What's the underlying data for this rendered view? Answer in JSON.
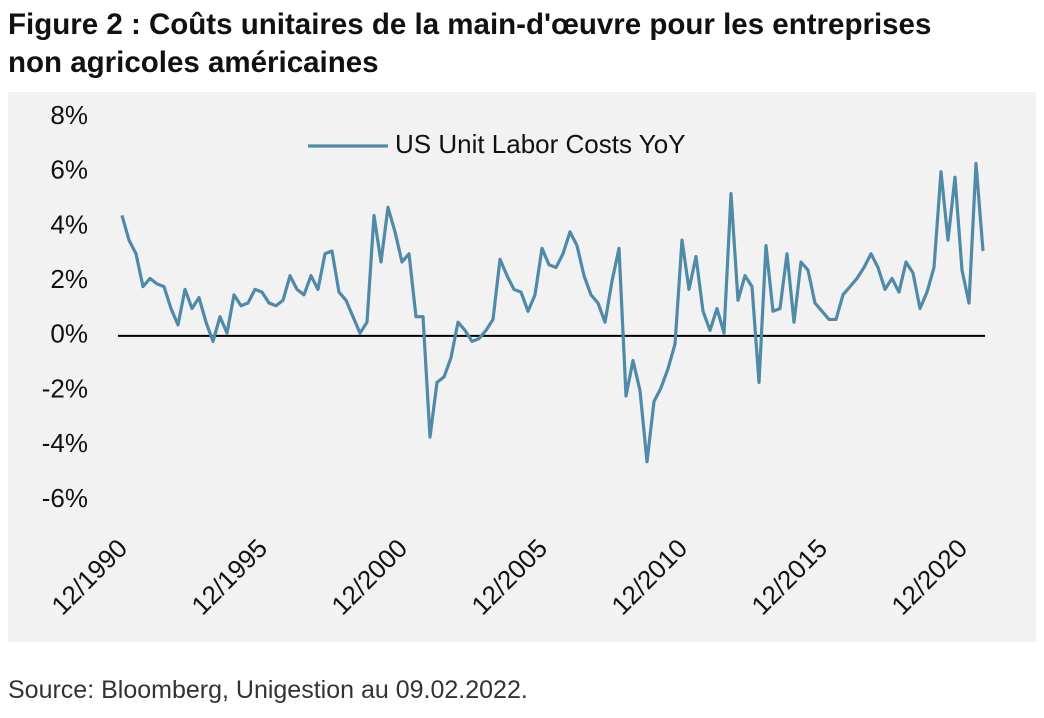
{
  "chart_data": {
    "type": "line",
    "title": "Figure 2 : Coûts unitaires de la main-d'œuvre pour les entreprises non agricoles américaines",
    "source": "Source: Bloomberg, Unigestion au 09.02.2022.",
    "categories": [
      "12/1990",
      null,
      null,
      null,
      null,
      null,
      null,
      null,
      null,
      null,
      null,
      null,
      null,
      null,
      null,
      null,
      null,
      null,
      null,
      null,
      "12/1995",
      null,
      null,
      null,
      null,
      null,
      null,
      null,
      null,
      null,
      null,
      null,
      null,
      null,
      null,
      null,
      null,
      null,
      null,
      null,
      "12/2000",
      null,
      null,
      null,
      null,
      null,
      null,
      null,
      null,
      null,
      null,
      null,
      null,
      null,
      null,
      null,
      null,
      null,
      null,
      null,
      "12/2005",
      null,
      null,
      null,
      null,
      null,
      null,
      null,
      null,
      null,
      null,
      null,
      null,
      null,
      null,
      null,
      null,
      null,
      null,
      null,
      "12/2010",
      null,
      null,
      null,
      null,
      null,
      null,
      null,
      null,
      null,
      null,
      null,
      null,
      null,
      null,
      null,
      null,
      null,
      null,
      null,
      "12/2015",
      null,
      null,
      null,
      null,
      null,
      null,
      null,
      null,
      null,
      null,
      null,
      null,
      null,
      null,
      null,
      null,
      null,
      null,
      null,
      "12/2020",
      null,
      null,
      null
    ],
    "series": [
      {
        "name": "US Unit Labor Costs YoY",
        "color": "#4f8aa8",
        "values": [
          4.4,
          3.5,
          3.0,
          1.8,
          2.1,
          1.9,
          1.8,
          1.0,
          0.4,
          1.7,
          1.0,
          1.4,
          0.5,
          -0.2,
          0.7,
          0.1,
          1.5,
          1.1,
          1.2,
          1.7,
          1.6,
          1.2,
          1.1,
          1.3,
          2.2,
          1.7,
          1.5,
          2.2,
          1.7,
          3.0,
          3.1,
          1.6,
          1.3,
          0.7,
          0.1,
          0.5,
          4.4,
          2.7,
          4.7,
          3.8,
          2.7,
          3.0,
          0.7,
          0.7,
          -3.7,
          -1.7,
          -1.5,
          -0.8,
          0.5,
          0.2,
          -0.2,
          -0.1,
          0.2,
          0.6,
          2.8,
          2.2,
          1.7,
          1.6,
          0.9,
          1.5,
          3.2,
          2.6,
          2.5,
          3.0,
          3.8,
          3.3,
          2.2,
          1.5,
          1.2,
          0.5,
          2.0,
          3.2,
          -2.2,
          -0.9,
          -2.0,
          -4.6,
          -2.4,
          -1.9,
          -1.2,
          -0.3,
          3.5,
          1.7,
          2.9,
          0.9,
          0.2,
          1.0,
          0.1,
          5.2,
          1.3,
          2.2,
          1.8,
          -1.7,
          3.3,
          0.9,
          1.0,
          3.0,
          0.5,
          2.7,
          2.4,
          1.2,
          0.9,
          0.6,
          0.6,
          1.5,
          1.8,
          2.1,
          2.5,
          3.0,
          2.5,
          1.7,
          2.1,
          1.6,
          2.7,
          2.3,
          1.0,
          1.6,
          2.5,
          6.0,
          3.5,
          5.8,
          2.4,
          1.2,
          6.3,
          3.1
        ]
      }
    ],
    "ylim": [
      -6,
      8
    ],
    "yticks": [
      {
        "value": -6,
        "label": "-6%"
      },
      {
        "value": -4,
        "label": "-4%"
      },
      {
        "value": -2,
        "label": "-2%"
      },
      {
        "value": 0,
        "label": "0%"
      },
      {
        "value": 2,
        "label": "2%"
      },
      {
        "value": 4,
        "label": "4%"
      },
      {
        "value": 6,
        "label": "6%"
      },
      {
        "value": 8,
        "label": "8%"
      }
    ],
    "grid": false,
    "legend": "top"
  }
}
